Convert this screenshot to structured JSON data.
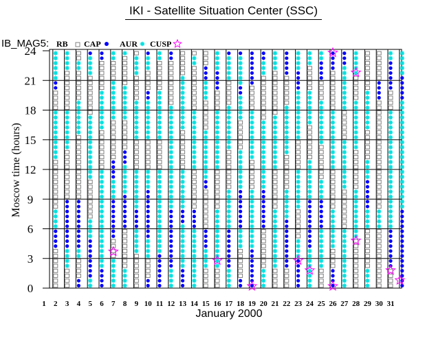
{
  "chart_data": {
    "type": "scatter",
    "title": "IKI - Satellite Situation Center (SSC)",
    "subtitle": "IB_MAG5:",
    "xlabel": "January    2000",
    "ylabel": "Moscow time (hours)",
    "xlim": [
      1,
      32
    ],
    "ylim": [
      0,
      24
    ],
    "yticks": [
      0,
      3,
      6,
      9,
      12,
      15,
      18,
      21,
      24
    ],
    "xticks": [
      "1",
      "2",
      "3",
      "4",
      "5",
      "6",
      "7",
      "8",
      "9",
      "10",
      "11",
      "12",
      "13",
      "14",
      "15",
      "16",
      "17",
      "18",
      "19",
      "20",
      "21",
      "22",
      "23",
      "24",
      "25",
      "26",
      "27",
      "28",
      "29",
      "30",
      "31"
    ],
    "legend": [
      {
        "label": "RB",
        "marker": "square",
        "color": "#808080"
      },
      {
        "label": "CAP",
        "marker": "dot",
        "color": "#0000ff"
      },
      {
        "label": "AUR",
        "marker": "asterisk",
        "color": "#00e0e0"
      },
      {
        "label": "CUSP",
        "marker": "star",
        "color": "#ff00ff"
      }
    ],
    "coding": "per day, 48 half-hour slots from 0h upward: R=RB, C=CAP, A=AUR, .=none",
    "days": {
      "2": "RRRRRRRRCCCCAAAARRRRRRRRRRAAAAAAAAAARRRRCCAAAAAA",
      "3": "RRRRAAAACCCCCCCCCCRRRRRRRRRRAAAAAAAARRRRRRRRAAAA",
      "4": "CCRRRRAACCCCCCCCCCRRRRRRRRRRRRRAAAAAAARRRRRRAARR",
      "5": "AACCCCCCCCAAAARRRRRRRRAAAAAAAAAAAAARRRRRRRRAAAAC",
      "6": "CCCCAAAAAAAAAAAAAAAAAAAARRRRRRRRAAAAAAAARRRRRRCC",
      "7": "AAAAAARRRRCCCCCCCCAAAACCCCRRRRRRRRAAAAAAAARRRRAA",
      "8": "AAAARRRRRRRRCCCCCCCAAAAAACCCRRRRRRAAAAAAARRRRRRA",
      "9": "RRRRRRRAAAAACCCCAAAAAAAARRRRRRAAAAAAAARRRRRAAAAR",
      "10": "CCRRRRAAAACCCCCCCCCCAAAARRRRRRAAAAAAAACCRRRRAAAC",
      "11": "CCCCCCCAAAAAAAAAAAAAAAAARRRRRRAAAAAAAAAARRRRRRAA",
      "12": "AAAACCCCCCCCCCCCAAAAAAAAAAAAAAAAAAAAARRRRRRRRRCC",
      "13": "CCCCAAAAAAAAACCCAAAAAAAARRRRRRRRAAAAAAAAAAARRRRR",
      "14": "AAAAAAAAAAAACCCCRRRRRRRRAAAAAAAAAAAARRRRRRRRRAAR",
      "15": "RRRRAAAACCCCRRRRRRRRCCAAAAAAAAAARRRRRRAAAACCCRRR",
      "16": "RRRRAAAAAAAAAAAARRRRRRRRAAAAAAAAAAAARRRRCCCCAAAA",
      "17": "AAAACCCCCCCCAAAAAAAARRRRRRRRAAAAAAAAARRRRRAAAAAC",
      "18": "CCRRRRRRAAAACCCCCCCCAAAAAAAARRRRRRAAAAACCAAAAAAC",
      "19": "CCCCCCCCAAAAAAAAAAAARRRRRRAAAAAAAAAARRRRRCCCCCCC",
      "20": "AAAARRRRRRRRCCCCCCCCAAAAAAAAAAAAAARRRRRRRRRAAACC",
      "21": "RRRRAAAAAAAAAAAARRRRRRRRAAAAAAAAAAARRRRRRRRRAAAA",
      "22": "RRRRCCCCCCCCCCAAAAAARRRRRRRAAAAAAAAAARRRRRRCCCCC",
      "23": "CCCCCCAAAARRRRRRAAAAAAAARRRRRRAAAAAAAAAACCCCAAAA",
      "24": "AAAAAAAACCCCCCCCCCAAAAAAAARRRRRRRAAAAAAARRRRRAAA",
      "25": "RRRRAAAAAAAACCCCCCAAAARRRRRRRAAAAAAAAARRRRCCCCAA",
      "26": "CCCCRRRRAAAAAAAARRRRRRRRAAAAAAAAAAAARRRRRRRRCCCC",
      "27": "AAAAAAAAAAAARRRRRRRRAAAAAAAAAARRRRRRAAAAAAAAACCC",
      "28": "RRRRRRRRRRAAAAAAAAAARRRRRRRRAAAAAAAAAARRRRRAAAAA",
      "29": "AAAARRRRRRRRAAAACCCCCCAAAARRRRRRAAAAAAAARRRRRRRR",
      "30": "RRRRRRRRRRRRAAAARRRRRRRRRRRRRRRRRRRRRRCCCCRRRRRR",
      "31": "RRRRCCCCCCCCAAAAAAAAAAAAAAAAAAAAAAAARRRRCCCCCCAA",
      "32": "CCCCCCCCCCCCCCCCAAAAAAAAAAAAAAAAAAAAAACCCCCAAAAA"
    },
    "cusp_events": [
      [
        7,
        3.7
      ],
      [
        16,
        2.8
      ],
      [
        19,
        0.2
      ],
      [
        23,
        2.8
      ],
      [
        24,
        1.8
      ],
      [
        26,
        0.2
      ],
      [
        26,
        23.8
      ],
      [
        28,
        4.8
      ],
      [
        28,
        21.8
      ],
      [
        31,
        1.8
      ],
      [
        31.8,
        0.8
      ]
    ]
  }
}
